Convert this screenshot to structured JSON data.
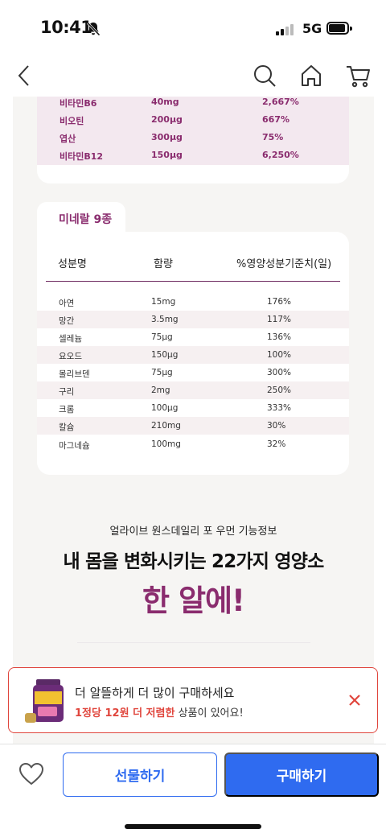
{
  "status": {
    "time": "10:41",
    "network": "5G"
  },
  "vitamin_rows": [
    {
      "name": "비타민B6",
      "amount": "40mg",
      "percent": "2,667%"
    },
    {
      "name": "비오틴",
      "amount": "200µg",
      "percent": "667%"
    },
    {
      "name": "엽산",
      "amount": "300µg",
      "percent": "75%"
    },
    {
      "name": "비타민B12",
      "amount": "150µg",
      "percent": "6,250%"
    }
  ],
  "minerals": {
    "tab_label": "미네랄 9종",
    "headers": {
      "name": "성분명",
      "amount": "함량",
      "percent": "%영양성분기준치(일)"
    },
    "rows": [
      {
        "name": "아연",
        "amount": "15mg",
        "percent": "176%"
      },
      {
        "name": "망간",
        "amount": "3.5mg",
        "percent": "117%"
      },
      {
        "name": "셀레늄",
        "amount": "75µg",
        "percent": "136%"
      },
      {
        "name": "요오드",
        "amount": "150µg",
        "percent": "100%"
      },
      {
        "name": "몰리브덴",
        "amount": "75µg",
        "percent": "300%"
      },
      {
        "name": "구리",
        "amount": "2mg",
        "percent": "250%"
      },
      {
        "name": "크롬",
        "amount": "100µg",
        "percent": "333%"
      },
      {
        "name": "칼슘",
        "amount": "210mg",
        "percent": "30%"
      },
      {
        "name": "마그네슘",
        "amount": "100mg",
        "percent": "32%"
      }
    ]
  },
  "function_info": {
    "subtitle": "얼라이브 원스데일리 포 우먼 기능정보",
    "title": "내 몸을 변화시키는 22가지 영양소",
    "highlight": "한 알에!"
  },
  "promo": {
    "line1": "더 알뜰하게 더 많이 구매하세요",
    "line2_highlight": "1정당 12원 더 저렴한",
    "line2_rest": " 상품이 있어요!",
    "accent_color": "#e0463d"
  },
  "bottom_bar": {
    "gift_label": "선물하기",
    "buy_label": "구매하기",
    "primary_color": "#2f6bf0"
  },
  "icons": {
    "back": "back-arrow-icon",
    "search": "search-icon",
    "home": "home-icon",
    "cart": "cart-icon",
    "wishlist": "heart-icon",
    "close": "close-icon"
  }
}
